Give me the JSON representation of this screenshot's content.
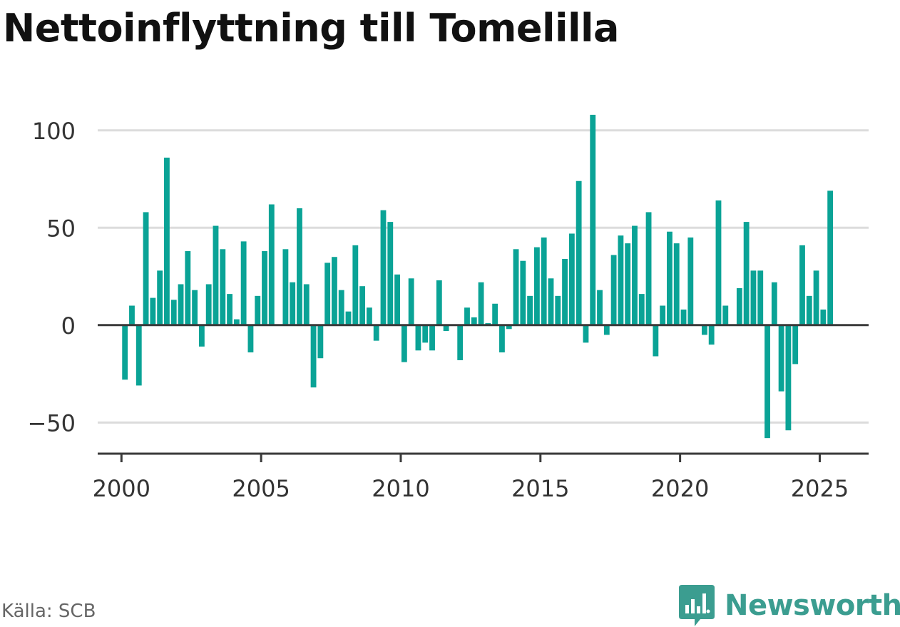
{
  "title": "Nettoinflyttning till Tomelilla",
  "source": "Källa: SCB",
  "brand": {
    "name": "Newsworthy",
    "icon": "bar-chart-logo-icon",
    "color": "#3b9d90"
  },
  "chart_data": {
    "type": "bar",
    "title": "Nettoinflyttning till Tomelilla",
    "xlabel": "",
    "ylabel": "",
    "bar_color": "#0aa396",
    "grid": true,
    "ylim": [
      -66,
      112
    ],
    "xlim": [
      1999.15,
      2026.75
    ],
    "x_ticks": [
      2000,
      2005,
      2010,
      2015,
      2020,
      2025
    ],
    "y_ticks": [
      100,
      50,
      0,
      -50
    ],
    "y_tick_labels": [
      "100",
      "50",
      "0",
      "−50"
    ],
    "period_step": 0.25,
    "x": [
      2000.25,
      2000.5,
      2000.75,
      2001,
      2001.25,
      2001.5,
      2001.75,
      2002,
      2002.25,
      2002.5,
      2002.75,
      2003,
      2003.25,
      2003.5,
      2003.75,
      2004,
      2004.25,
      2004.5,
      2004.75,
      2005,
      2005.25,
      2005.5,
      2005.75,
      2006,
      2006.25,
      2006.5,
      2006.75,
      2007,
      2007.25,
      2007.5,
      2007.75,
      2008,
      2008.25,
      2008.5,
      2008.75,
      2009,
      2009.25,
      2009.5,
      2009.75,
      2010,
      2010.25,
      2010.5,
      2010.75,
      2011,
      2011.25,
      2011.5,
      2011.75,
      2012,
      2012.25,
      2012.5,
      2012.75,
      2013,
      2013.25,
      2013.5,
      2013.75,
      2014,
      2014.25,
      2014.5,
      2014.75,
      2015,
      2015.25,
      2015.5,
      2015.75,
      2016,
      2016.25,
      2016.5,
      2016.75,
      2017,
      2017.25,
      2017.5,
      2017.75,
      2018,
      2018.25,
      2018.5,
      2018.75,
      2019,
      2019.25,
      2019.5,
      2019.75,
      2020,
      2020.25,
      2020.5,
      2020.75,
      2021,
      2021.25,
      2021.5,
      2021.75,
      2022,
      2022.25,
      2022.5,
      2022.75,
      2023,
      2023.25,
      2023.5,
      2023.75,
      2024,
      2024.25,
      2024.5,
      2024.75,
      2025,
      2025.25,
      2025.5
    ],
    "values": [
      -28,
      10,
      -31,
      58,
      14,
      28,
      86,
      13,
      21,
      38,
      18,
      -11,
      21,
      51,
      39,
      16,
      3,
      43,
      -14,
      15,
      38,
      62,
      0,
      39,
      22,
      60,
      21,
      -32,
      -17,
      32,
      35,
      18,
      7,
      41,
      20,
      9,
      -8,
      59,
      53,
      26,
      -19,
      24,
      -13,
      -9,
      -13,
      23,
      -3,
      0,
      -18,
      9,
      4,
      22,
      1,
      11,
      -14,
      -2,
      39,
      33,
      15,
      40,
      45,
      24,
      15,
      34,
      47,
      74,
      -9,
      108,
      18,
      -5,
      36,
      46,
      42,
      51,
      16,
      58,
      -16,
      10,
      48,
      42,
      8,
      45,
      0,
      -5,
      -10,
      64,
      10,
      0,
      19,
      53,
      28,
      28,
      -58,
      22,
      -34,
      -54,
      -20,
      41,
      15,
      28,
      8,
      69
    ]
  }
}
